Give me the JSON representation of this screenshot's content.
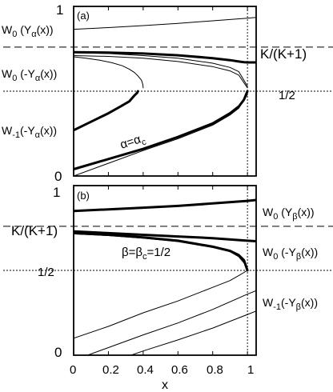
{
  "chart_data": [
    {
      "type": "line",
      "panel_label": "(a)",
      "xlim": [
        0,
        1.05
      ],
      "ylim": [
        0,
        1
      ],
      "ytick_labels": [
        {
          "value": 0,
          "label": "0"
        },
        {
          "value": 0.5,
          "label": "1/2"
        },
        {
          "value": 1,
          "label": "1"
        }
      ],
      "hlines": [
        {
          "value": 0.76,
          "style": "dashed",
          "label": "K/(K+1)"
        },
        {
          "value": 0.5,
          "style": "dotted",
          "label": "1/2"
        }
      ],
      "vline": {
        "value": 1,
        "style": "dotted"
      },
      "branch_labels": [
        "W₀ (Yα(x))",
        "W₀ (-Yα(x))",
        "W₋₁(-Yα(x))"
      ],
      "annotation": "α=αc",
      "series": [
        {
          "weight": "thin",
          "x": [
            0,
            0.2,
            0.4,
            0.6,
            0.8,
            1.0,
            1.05
          ],
          "y": [
            0.865,
            0.875,
            0.887,
            0.9,
            0.915,
            0.93,
            0.935
          ]
        },
        {
          "weight": "thin",
          "x": [
            0.4,
            0.398,
            0.39,
            0.37,
            0.35,
            0.32,
            0.28,
            0.22,
            0.15,
            0.07,
            0
          ],
          "y": [
            0.52,
            0.54,
            0.565,
            0.59,
            0.61,
            0.63,
            0.65,
            0.668,
            0.683,
            0.695,
            0.703
          ]
        },
        {
          "weight": "thin",
          "x": [
            0,
            0.2,
            0.4,
            0.6,
            0.8,
            0.9,
            0.95,
            1.0
          ],
          "y": [
            0.71,
            0.705,
            0.695,
            0.675,
            0.645,
            0.62,
            0.595,
            0.52
          ]
        },
        {
          "weight": "thin",
          "x": [
            0,
            0.2,
            0.4,
            0.6,
            0.8,
            0.9,
            0.95,
            1.0
          ],
          "y": [
            0.727,
            0.722,
            0.71,
            0.695,
            0.665,
            0.64,
            0.615,
            0.53
          ]
        },
        {
          "weight": "thick",
          "x": [
            0,
            0.2,
            0.4,
            0.6,
            0.8,
            0.9,
            0.95,
            0.98,
            1.0,
            1.05
          ],
          "y": [
            0.73,
            0.728,
            0.722,
            0.712,
            0.695,
            0.683,
            0.675,
            0.671,
            0.67,
            0.67
          ]
        },
        {
          "weight": "thick",
          "x": [
            0.0,
            0.1,
            0.2,
            0.27,
            0.32,
            0.35,
            0.365,
            0.37
          ],
          "y": [
            0.27,
            0.32,
            0.37,
            0.41,
            0.44,
            0.475,
            0.49,
            0.5
          ]
        },
        {
          "weight": "thick",
          "x": [
            0,
            0.2,
            0.4,
            0.6,
            0.8,
            0.9,
            0.95,
            0.98,
            1.0
          ],
          "y": [
            0.04,
            0.1,
            0.16,
            0.23,
            0.31,
            0.37,
            0.41,
            0.45,
            0.5
          ]
        },
        {
          "weight": "thin",
          "x": [
            0,
            0.2,
            0.4,
            0.6,
            0.8,
            0.9,
            0.95,
            1.0
          ],
          "y": [
            0.0,
            0.075,
            0.15,
            0.22,
            0.3,
            0.36,
            0.4,
            0.48
          ]
        }
      ]
    },
    {
      "type": "line",
      "panel_label": "(b)",
      "xlabel": "x",
      "xlim": [
        0,
        1.05
      ],
      "ylim": [
        0,
        1
      ],
      "xtick_labels": [
        "0",
        "0.2",
        "0.4",
        "0.6",
        "0.8",
        "1"
      ],
      "xticks": [
        0,
        0.2,
        0.4,
        0.6,
        0.8,
        1.0
      ],
      "ytick_labels": [
        {
          "value": 0,
          "label": "0"
        },
        {
          "value": 0.5,
          "label": "1/2"
        },
        {
          "value": 1,
          "label": "1"
        }
      ],
      "hlines": [
        {
          "value": 0.76,
          "style": "dashed",
          "label": "K/(K+1)"
        },
        {
          "value": 0.5,
          "style": "dotted",
          "label": "1/2"
        }
      ],
      "vline": {
        "value": 1,
        "style": "dotted"
      },
      "branch_labels": [
        "W₀ (Yβ(x))",
        "W₀ (-Yβ(x))",
        "W₋₁(-Yβ(x))"
      ],
      "annotation": "β=βc=1/2",
      "series": [
        {
          "weight": "thick",
          "x": [
            0,
            0.2,
            0.4,
            0.6,
            0.8,
            1.0,
            1.05
          ],
          "y": [
            0.85,
            0.86,
            0.87,
            0.88,
            0.895,
            0.91,
            0.915
          ]
        },
        {
          "weight": "thick",
          "x": [
            0,
            0.2,
            0.4,
            0.6,
            0.8,
            1.0,
            1.05
          ],
          "y": [
            0.73,
            0.72,
            0.71,
            0.7,
            0.69,
            0.675,
            0.672
          ]
        },
        {
          "weight": "thick",
          "x": [
            0,
            0.2,
            0.4,
            0.6,
            0.8,
            0.9,
            0.95,
            0.98,
            1.0
          ],
          "y": [
            0.72,
            0.71,
            0.695,
            0.675,
            0.64,
            0.615,
            0.59,
            0.56,
            0.5
          ]
        },
        {
          "weight": "thin",
          "x": [
            0,
            0.2,
            0.4,
            0.6,
            0.8,
            0.9,
            0.95,
            1.0
          ],
          "y": [
            0.715,
            0.705,
            0.69,
            0.67,
            0.635,
            0.61,
            0.58,
            0.52
          ]
        },
        {
          "weight": "thin",
          "x": [
            0,
            0.2,
            0.4,
            0.6,
            0.8,
            0.9,
            0.95,
            1.0
          ],
          "y": [
            0.1,
            0.17,
            0.25,
            0.32,
            0.4,
            0.44,
            0.47,
            0.5
          ]
        },
        {
          "weight": "thin",
          "x": [
            0.08,
            0.2,
            0.4,
            0.6,
            0.8,
            1.0,
            1.05
          ],
          "y": [
            0.0,
            0.045,
            0.12,
            0.19,
            0.27,
            0.36,
            0.38
          ]
        },
        {
          "weight": "thin",
          "x": [
            0.33,
            0.4,
            0.6,
            0.8,
            1.0,
            1.05
          ],
          "y": [
            0.0,
            0.025,
            0.09,
            0.16,
            0.24,
            0.26
          ]
        }
      ]
    }
  ]
}
